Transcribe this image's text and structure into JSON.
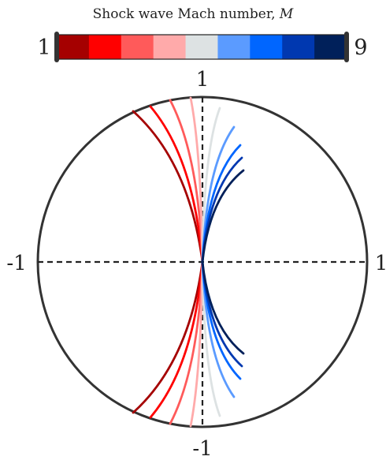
{
  "colorbar": {
    "title_text": "Shock wave Mach number, ",
    "title_symbol": "M",
    "min_label": "1",
    "max_label": "9",
    "colors": [
      "#a50000",
      "#ff0000",
      "#ff5a5a",
      "#ffaaaa",
      "#dde2e3",
      "#5b9bff",
      "#0066ff",
      "#0038b0",
      "#00205a"
    ]
  },
  "axes": {
    "top_label": "1",
    "bottom_label": "-1",
    "left_label": "-1",
    "right_label": "1"
  },
  "curves": {
    "colors": [
      "#a50000",
      "#ff0000",
      "#ff5a5a",
      "#ffaaaa",
      "#dde2e3",
      "#5b9bff",
      "#0066ff",
      "#0038b0",
      "#00205a"
    ]
  }
}
